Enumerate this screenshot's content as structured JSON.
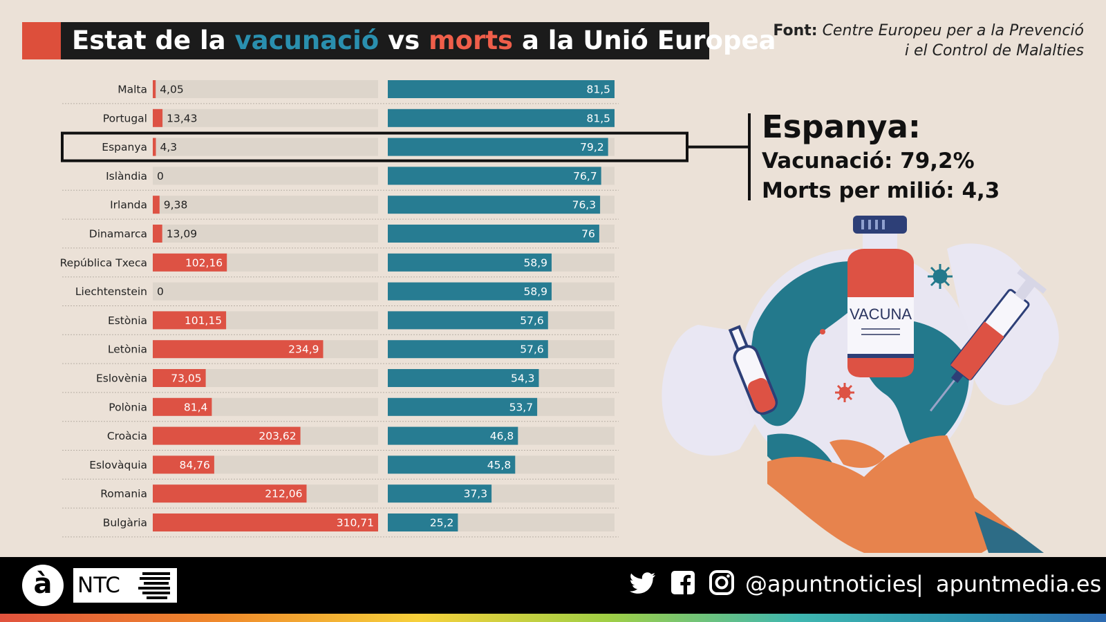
{
  "title": {
    "part1": "Estat de la ",
    "highlight_vacc": "vacunació",
    "part2": " vs ",
    "highlight_morts": "morts",
    "part3": " a la Unió Europea"
  },
  "source": {
    "label": "Font:",
    "line1": "Centre Europeu per a la Prevenció",
    "line2": "i el Control de Malalties"
  },
  "callout": {
    "heading": "Espanya:",
    "vacc": "Vacunació: 79,2%",
    "morts": "Morts per milió: 4,3"
  },
  "illustration": {
    "vial_label": "VACUNA"
  },
  "footer": {
    "logo": "à",
    "brand": "NTC",
    "handle": "@apuntnoticies",
    "separator": "|",
    "site": "apuntmedia.es",
    "icons": [
      "twitter-icon",
      "facebook-icon",
      "instagram-icon"
    ]
  },
  "colors": {
    "deaths": "#dd5244",
    "vaccination": "#277c92",
    "track": "#ddd5cb",
    "highlight_frame": "#111111",
    "title_bg": "#1b1b1b"
  },
  "chart_data": {
    "type": "bar",
    "orientation": "horizontal",
    "title": "Estat de la vacunació vs morts a la Unió Europea",
    "highlight": "Espanya",
    "categories": [
      "Malta",
      "Portugal",
      "Espanya",
      "Islàndia",
      "Irlanda",
      "Dinamarca",
      "República Txeca",
      "Liechtenstein",
      "Estònia",
      "Letònia",
      "Eslovènia",
      "Polònia",
      "Croàcia",
      "Eslovàquia",
      "Romania",
      "Bulgària"
    ],
    "series": [
      {
        "name": "Morts per milió",
        "values": [
          4.05,
          13.43,
          4.3,
          0,
          9.38,
          13.09,
          102.16,
          0,
          101.15,
          234.9,
          73.05,
          81.4,
          203.62,
          84.76,
          212.06,
          310.71
        ],
        "labels": [
          "4,05",
          "13,43",
          "4,3",
          "0",
          "9,38",
          "13,09",
          "102,16",
          "0",
          "101,15",
          "234,9",
          "73,05",
          "81,4",
          "203,62",
          "84,76",
          "212,06",
          "310,71"
        ],
        "max": 310.71
      },
      {
        "name": "Vacunació (%)",
        "values": [
          81.5,
          81.5,
          79.2,
          76.7,
          76.3,
          76,
          58.9,
          58.9,
          57.6,
          57.6,
          54.3,
          53.7,
          46.8,
          45.8,
          37.3,
          25.2
        ],
        "labels": [
          "81,5",
          "81,5",
          "79,2",
          "76,7",
          "76,3",
          "76",
          "58,9",
          "58,9",
          "57,6",
          "57,6",
          "54,3",
          "53,7",
          "46,8",
          "45,8",
          "37,3",
          "25,2"
        ],
        "max": 100
      }
    ]
  }
}
